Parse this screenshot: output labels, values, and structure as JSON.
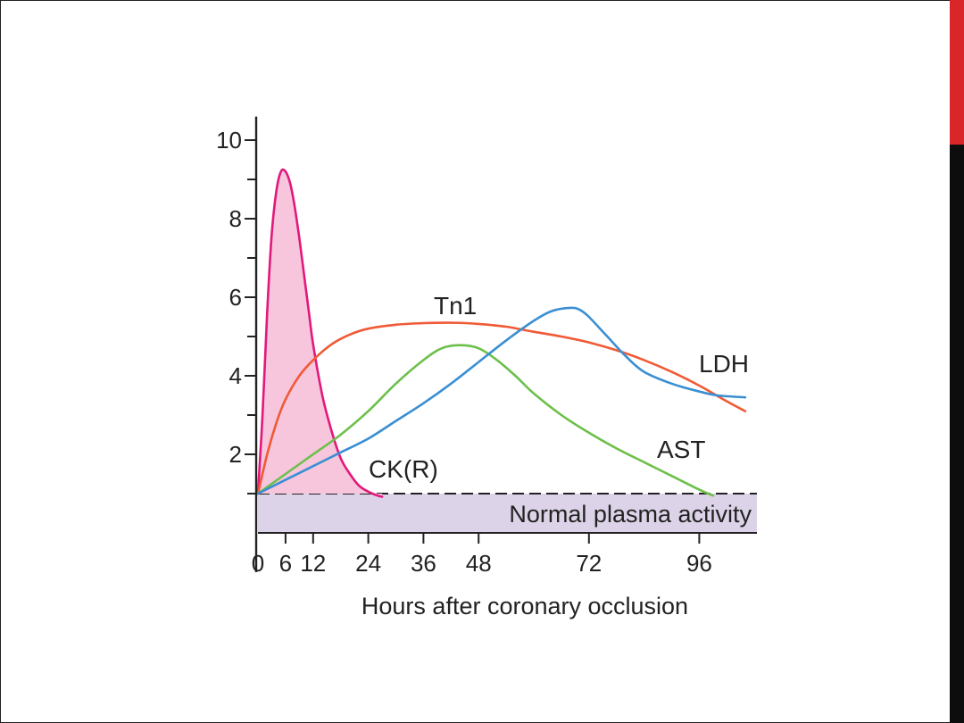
{
  "theme": {
    "accent_bar_color": "#d9262b",
    "side_bar_color": "#0d0d0d",
    "normal_band_color": "#ddd3e8"
  },
  "chart_data": {
    "type": "line",
    "title": "",
    "xlabel": "Hours after coronary occlusion",
    "ylabel": "",
    "xlim": [
      0,
      112
    ],
    "ylim": [
      0,
      10
    ],
    "x_ticks": [
      0,
      6,
      12,
      24,
      36,
      48,
      72,
      96
    ],
    "x_tick_labels": [
      "0",
      "6",
      "12",
      "24",
      "36",
      "48",
      "72",
      "96"
    ],
    "y_ticks": [
      2,
      4,
      6,
      8,
      10
    ],
    "y_tick_labels": [
      "2",
      "4",
      "6",
      "8",
      "10"
    ],
    "y_minor_ticks": [
      1,
      3,
      5,
      7,
      9
    ],
    "normal_band": {
      "label": "Normal plasma activity",
      "y_max": 1,
      "y_min": 0
    },
    "series": [
      {
        "name": "CK(R)",
        "color": "#e2187c",
        "fill": "#f7c6dc",
        "x": [
          0,
          1,
          2,
          3,
          4,
          5,
          6,
          7,
          8,
          9,
          10,
          11,
          12,
          14,
          16,
          18,
          20,
          22,
          24,
          26,
          27
        ],
        "y": [
          1.0,
          3.0,
          5.6,
          7.6,
          8.7,
          9.2,
          9.2,
          8.9,
          8.3,
          7.5,
          6.6,
          5.7,
          4.8,
          3.5,
          2.6,
          1.9,
          1.5,
          1.2,
          1.05,
          0.95,
          0.92
        ]
      },
      {
        "name": "Tn1",
        "color": "#f05a36",
        "x": [
          0,
          2,
          4,
          6,
          9,
          12,
          16,
          20,
          24,
          30,
          36,
          42,
          48,
          54,
          60,
          66,
          72,
          78,
          84,
          90,
          96,
          102,
          106
        ],
        "y": [
          1.0,
          2.0,
          2.8,
          3.4,
          4.0,
          4.4,
          4.8,
          5.05,
          5.2,
          5.3,
          5.34,
          5.35,
          5.32,
          5.25,
          5.12,
          5.0,
          4.85,
          4.65,
          4.4,
          4.1,
          3.75,
          3.35,
          3.1
        ]
      },
      {
        "name": "AST",
        "color": "#6cc04a",
        "x": [
          0,
          6,
          12,
          18,
          24,
          30,
          36,
          40,
          44,
          48,
          52,
          56,
          60,
          66,
          72,
          78,
          84,
          90,
          96,
          99
        ],
        "y": [
          1.0,
          1.5,
          2.0,
          2.5,
          3.1,
          3.8,
          4.4,
          4.7,
          4.78,
          4.7,
          4.4,
          4.0,
          3.55,
          3.0,
          2.55,
          2.15,
          1.8,
          1.45,
          1.1,
          0.95
        ]
      },
      {
        "name": "LDH",
        "color": "#3a8fd3",
        "x": [
          0,
          6,
          12,
          18,
          24,
          30,
          36,
          42,
          48,
          54,
          60,
          64,
          68,
          70,
          72,
          76,
          80,
          84,
          90,
          96,
          100,
          106
        ],
        "y": [
          1.0,
          1.35,
          1.7,
          2.05,
          2.4,
          2.85,
          3.3,
          3.8,
          4.35,
          4.9,
          5.4,
          5.65,
          5.73,
          5.68,
          5.5,
          5.0,
          4.5,
          4.1,
          3.8,
          3.6,
          3.5,
          3.45
        ]
      }
    ]
  }
}
